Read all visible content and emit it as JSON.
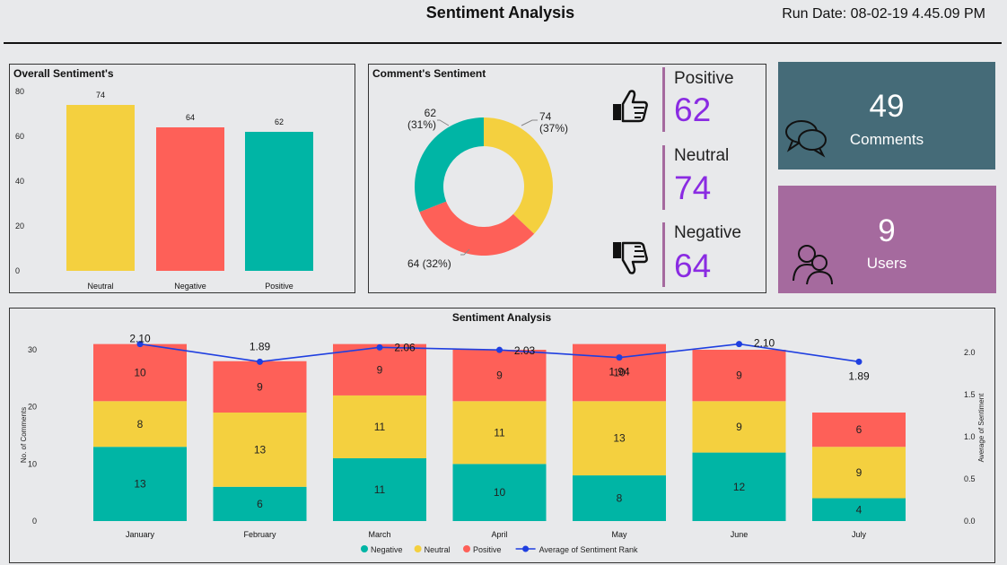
{
  "header": {
    "title": "Sentiment Analysis",
    "run_date": "Run Date: 08-02-19 4.45.09 PM"
  },
  "colors": {
    "neutral": "#f4d03f",
    "negative": "#fe6058",
    "positive": "#00b5a5",
    "line": "#1f3fe0",
    "comments_card": "#456b78",
    "users_card": "#a56a9e",
    "kpi_value": "#8a2be2"
  },
  "kpis": {
    "positive_label": "Positive",
    "positive_value": "62",
    "neutral_label": "Neutral",
    "neutral_value": "74",
    "negative_label": "Negative",
    "negative_value": "64"
  },
  "cards": {
    "comments_value": "49",
    "comments_label": "Comments",
    "users_value": "9",
    "users_label": "Users"
  },
  "chart_data": [
    {
      "type": "bar",
      "title": "Overall Sentiment's",
      "categories": [
        "Neutral",
        "Negative",
        "Positive"
      ],
      "values": [
        74,
        64,
        62
      ],
      "ylim": [
        0,
        80
      ],
      "yticks": [
        0,
        20,
        40,
        60,
        80
      ],
      "bar_colors": [
        "#f4d03f",
        "#fe6058",
        "#00b5a5"
      ]
    },
    {
      "type": "pie",
      "title": "Comment's Sentiment",
      "donut": true,
      "slices": [
        {
          "name": "Neutral",
          "value": 74,
          "label": "74",
          "pct": "(37%)",
          "color": "#f4d03f"
        },
        {
          "name": "Negative",
          "value": 64,
          "label": "64 (32%)",
          "pct": "",
          "color": "#fe6058"
        },
        {
          "name": "Positive",
          "value": 62,
          "label": "62",
          "pct": "(31%)",
          "color": "#00b5a5"
        }
      ]
    },
    {
      "type": "bar",
      "stacked": true,
      "title": "Sentiment Analysis",
      "categories": [
        "January",
        "February",
        "March",
        "April",
        "May",
        "June",
        "July"
      ],
      "series": [
        {
          "name": "Negative",
          "color": "#00b5a5",
          "values": [
            13,
            6,
            11,
            10,
            8,
            12,
            4
          ]
        },
        {
          "name": "Neutral",
          "color": "#f4d03f",
          "values": [
            8,
            13,
            11,
            11,
            13,
            9,
            9
          ]
        },
        {
          "name": "Positive",
          "color": "#fe6058",
          "values": [
            10,
            9,
            9,
            9,
            10,
            9,
            6
          ]
        }
      ],
      "line": {
        "name": "Average of Sentiment Rank",
        "color": "#1f3fe0",
        "values": [
          2.1,
          1.89,
          2.06,
          2.03,
          1.94,
          2.1,
          1.89
        ]
      },
      "ylabel": "No. of Comments",
      "y2label": "Average of Sentiment",
      "ylim": [
        0,
        31
      ],
      "yticks": [
        0,
        10,
        20,
        30
      ],
      "y2lim": [
        0,
        2.1
      ],
      "y2ticks": [
        "0.0",
        "0.5",
        "1.0",
        "1.5",
        "2.0"
      ],
      "legend_position": "bottom"
    }
  ]
}
